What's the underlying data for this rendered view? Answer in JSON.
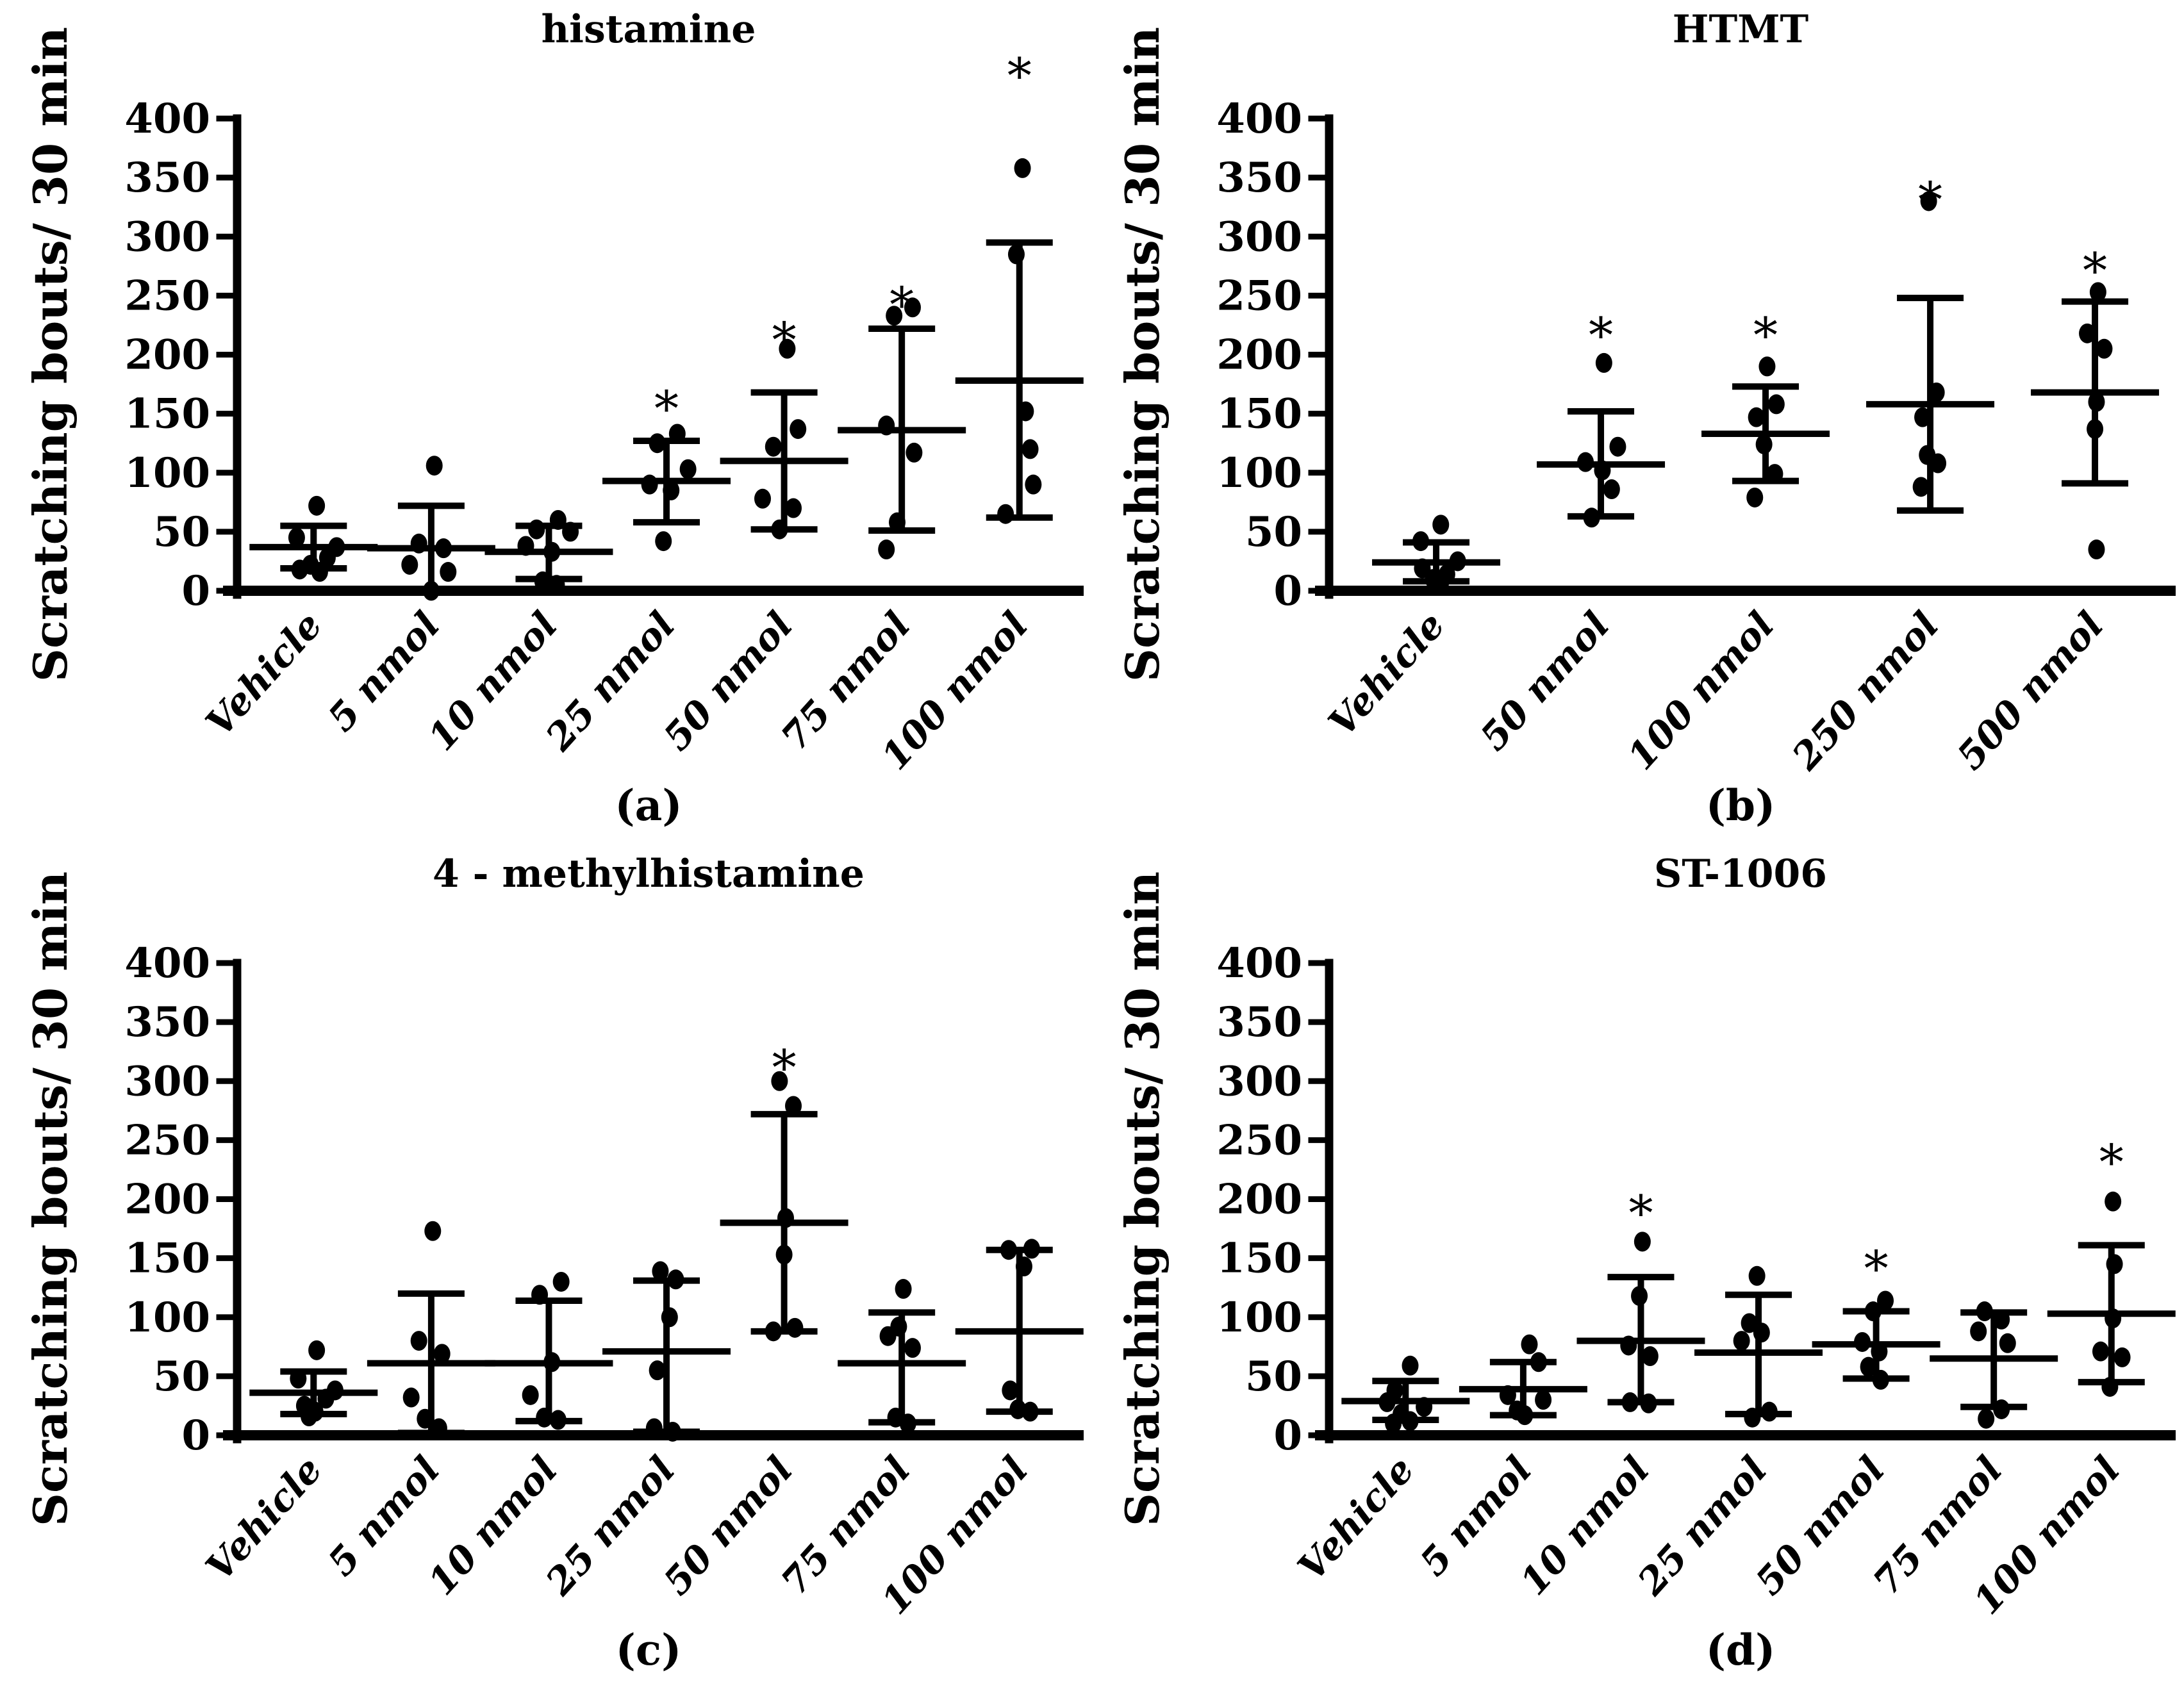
{
  "figure": {
    "background_color": "#ffffff",
    "foreground_color": "#000000",
    "ylabel": "Scratching bouts/ 30 min",
    "ylim": [
      0,
      400
    ],
    "yticks": [
      0,
      50,
      100,
      150,
      200,
      250,
      300,
      350,
      400
    ],
    "significance_marker": "*",
    "marker_style": "filled-black-circle",
    "error_bar_style": "mean with SD whiskers",
    "grid": "off",
    "legend": "none"
  },
  "chart_data": [
    {
      "type": "scatter",
      "panel_letter": "(a)",
      "title": "histamine",
      "xlabel": "",
      "ylabel": "Scratching bouts/ 30 min",
      "ylim": [
        0,
        400
      ],
      "categories": [
        "Vehicle",
        "5 nmol",
        "10 nmol",
        "25 nmol",
        "50 nmol",
        "75 nmol",
        "100 nmol"
      ],
      "groups": [
        {
          "label": "Vehicle",
          "points": [
            [
              72,
              0.1
            ],
            [
              45,
              -0.55
            ],
            [
              37,
              0.75
            ],
            [
              28,
              0.45
            ],
            [
              22,
              -0.1
            ],
            [
              18,
              -0.45
            ],
            [
              16,
              0.2
            ]
          ],
          "mean": 37,
          "sd_low": 19,
          "sd_high": 55,
          "significant": false,
          "star_y": null
        },
        {
          "label": "5 nmol",
          "points": [
            [
              106,
              0.1
            ],
            [
              40,
              -0.4
            ],
            [
              36,
              0.4
            ],
            [
              22,
              -0.7
            ],
            [
              16,
              0.55
            ],
            [
              0,
              0.0
            ]
          ],
          "mean": 36,
          "sd_low": 0,
          "sd_high": 72,
          "significant": false,
          "star_y": null
        },
        {
          "label": "10 nmol",
          "points": [
            [
              60,
              0.3
            ],
            [
              52,
              -0.4
            ],
            [
              50,
              0.7
            ],
            [
              38,
              -0.75
            ],
            [
              33,
              0.1
            ],
            [
              8,
              -0.2
            ],
            [
              5,
              0.25
            ]
          ],
          "mean": 33,
          "sd_low": 10,
          "sd_high": 55,
          "significant": false,
          "star_y": null
        },
        {
          "label": "25 nmol",
          "points": [
            [
              133,
              0.35
            ],
            [
              125,
              -0.3
            ],
            [
              103,
              0.7
            ],
            [
              90,
              -0.55
            ],
            [
              85,
              0.15
            ],
            [
              42,
              -0.1
            ]
          ],
          "mean": 93,
          "sd_low": 58,
          "sd_high": 127,
          "significant": true,
          "star_y": 168
        },
        {
          "label": "50 nmol",
          "points": [
            [
              205,
              0.1
            ],
            [
              137,
              0.45
            ],
            [
              122,
              -0.35
            ],
            [
              78,
              -0.7
            ],
            [
              70,
              0.3
            ],
            [
              52,
              -0.15
            ]
          ],
          "mean": 110,
          "sd_low": 52,
          "sd_high": 168,
          "significant": true,
          "star_y": 226
        },
        {
          "label": "75 nmol",
          "points": [
            [
              240,
              0.35
            ],
            [
              233,
              -0.25
            ],
            [
              140,
              -0.5
            ],
            [
              117,
              0.4
            ],
            [
              58,
              -0.15
            ],
            [
              35,
              -0.5
            ]
          ],
          "mean": 136,
          "sd_low": 51,
          "sd_high": 222,
          "significant": true,
          "star_y": 256
        },
        {
          "label": "100 nmol",
          "points": [
            [
              358,
              0.1
            ],
            [
              285,
              -0.1
            ],
            [
              152,
              0.2
            ],
            [
              120,
              0.35
            ],
            [
              90,
              0.45
            ],
            [
              65,
              -0.45
            ]
          ],
          "mean": 178,
          "sd_low": 62,
          "sd_high": 295,
          "significant": true,
          "star_y": 450
        }
      ]
    },
    {
      "type": "scatter",
      "panel_letter": "(b)",
      "title": "HTMT",
      "xlabel": "",
      "ylabel": "Scratching bouts/ 30 min",
      "ylim": [
        0,
        400
      ],
      "categories": [
        "Vehicle",
        "50 nmol",
        "100 nmol",
        "250 nmol",
        "500 nmol"
      ],
      "groups": [
        {
          "label": "Vehicle",
          "points": [
            [
              56,
              0.15
            ],
            [
              42,
              -0.5
            ],
            [
              25,
              0.7
            ],
            [
              19,
              -0.45
            ],
            [
              14,
              0.35
            ],
            [
              10,
              -0.1
            ],
            [
              7,
              0.15
            ]
          ],
          "mean": 24,
          "sd_low": 8,
          "sd_high": 41,
          "significant": false,
          "star_y": null
        },
        {
          "label": "50 nmol",
          "points": [
            [
              193,
              0.1
            ],
            [
              122,
              0.55
            ],
            [
              109,
              -0.5
            ],
            [
              102,
              0.05
            ],
            [
              86,
              0.35
            ],
            [
              62,
              -0.3
            ]
          ],
          "mean": 107,
          "sd_low": 63,
          "sd_high": 152,
          "significant": true,
          "star_y": 230
        },
        {
          "label": "100 nmol",
          "points": [
            [
              190,
              0.05
            ],
            [
              158,
              0.35
            ],
            [
              147,
              -0.3
            ],
            [
              124,
              -0.05
            ],
            [
              99,
              0.3
            ],
            [
              79,
              -0.35
            ]
          ],
          "mean": 133,
          "sd_low": 93,
          "sd_high": 173,
          "significant": true,
          "star_y": 230
        },
        {
          "label": "250 nmol",
          "points": [
            [
              330,
              -0.05
            ],
            [
              168,
              0.2
            ],
            [
              147,
              -0.25
            ],
            [
              115,
              -0.1
            ],
            [
              108,
              0.25
            ],
            [
              88,
              -0.3
            ]
          ],
          "mean": 158,
          "sd_low": 68,
          "sd_high": 248,
          "significant": true,
          "star_y": 345
        },
        {
          "label": "500 nmol",
          "points": [
            [
              253,
              0.1
            ],
            [
              218,
              -0.25
            ],
            [
              205,
              0.3
            ],
            [
              160,
              0.05
            ],
            [
              137,
              0.0
            ],
            [
              35,
              0.05
            ]
          ],
          "mean": 168,
          "sd_low": 91,
          "sd_high": 245,
          "significant": true,
          "star_y": 285
        }
      ]
    },
    {
      "type": "scatter",
      "panel_letter": "(c)",
      "title": "4 - methylhistamine",
      "xlabel": "",
      "ylabel": "Scratching bouts/ 30 min",
      "ylim": [
        0,
        400
      ],
      "categories": [
        "Vehicle",
        "5 nmol",
        "10 nmol",
        "25 nmol",
        "50 nmol",
        "75 nmol",
        "100 nmol"
      ],
      "groups": [
        {
          "label": "Vehicle",
          "points": [
            [
              72,
              0.1
            ],
            [
              48,
              -0.5
            ],
            [
              38,
              0.7
            ],
            [
              31,
              0.4
            ],
            [
              25,
              -0.3
            ],
            [
              20,
              0.05
            ],
            [
              16,
              -0.15
            ]
          ],
          "mean": 36,
          "sd_low": 18,
          "sd_high": 54,
          "significant": false,
          "star_y": null
        },
        {
          "label": "5 nmol",
          "points": [
            [
              173,
              0.05
            ],
            [
              80,
              -0.4
            ],
            [
              69,
              0.35
            ],
            [
              32,
              -0.65
            ],
            [
              14,
              -0.2
            ],
            [
              6,
              0.25
            ]
          ],
          "mean": 61,
          "sd_low": 2,
          "sd_high": 120,
          "significant": false,
          "star_y": null
        },
        {
          "label": "10 nmol",
          "points": [
            [
              130,
              0.4
            ],
            [
              119,
              -0.3
            ],
            [
              62,
              0.1
            ],
            [
              34,
              -0.6
            ],
            [
              15,
              -0.15
            ],
            [
              13,
              0.3
            ]
          ],
          "mean": 61,
          "sd_low": 12,
          "sd_high": 114,
          "significant": false,
          "star_y": null
        },
        {
          "label": "25 nmol",
          "points": [
            [
              139,
              -0.2
            ],
            [
              132,
              0.3
            ],
            [
              100,
              0.1
            ],
            [
              55,
              -0.3
            ],
            [
              6,
              -0.4
            ],
            [
              3,
              0.2
            ]
          ],
          "mean": 71,
          "sd_low": 3,
          "sd_high": 131,
          "significant": false,
          "star_y": null
        },
        {
          "label": "50 nmol",
          "points": [
            [
              300,
              -0.15
            ],
            [
              279,
              0.3
            ],
            [
              184,
              0.05
            ],
            [
              153,
              0.0
            ],
            [
              91,
              0.35
            ],
            [
              88,
              -0.35
            ]
          ],
          "mean": 180,
          "sd_low": 88,
          "sd_high": 272,
          "significant": true,
          "star_y": 325
        },
        {
          "label": "75 nmol",
          "points": [
            [
              124,
              0.05
            ],
            [
              92,
              -0.1
            ],
            [
              84,
              -0.45
            ],
            [
              74,
              0.35
            ],
            [
              15,
              -0.2
            ],
            [
              10,
              0.2
            ]
          ],
          "mean": 61,
          "sd_low": 11,
          "sd_high": 104,
          "significant": false,
          "star_y": null
        },
        {
          "label": "100 nmol",
          "points": [
            [
              158,
              0.4
            ],
            [
              157,
              -0.35
            ],
            [
              143,
              0.15
            ],
            [
              38,
              -0.3
            ],
            [
              22,
              -0.05
            ],
            [
              20,
              0.35
            ]
          ],
          "mean": 88,
          "sd_low": 20,
          "sd_high": 157,
          "significant": false,
          "star_y": null
        }
      ]
    },
    {
      "type": "scatter",
      "panel_letter": "(d)",
      "title": "ST-1006",
      "xlabel": "",
      "ylabel": "Scratching bouts/ 30 min",
      "ylim": [
        0,
        400
      ],
      "categories": [
        "Vehicle",
        "5 nmol",
        "10 nmol",
        "25 nmol",
        "50 nmol",
        "75 nmol",
        "100 nmol"
      ],
      "groups": [
        {
          "label": "Vehicle",
          "points": [
            [
              59,
              0.15
            ],
            [
              38,
              -0.35
            ],
            [
              28,
              -0.6
            ],
            [
              24,
              0.6
            ],
            [
              18,
              -0.15
            ],
            [
              12,
              0.15
            ],
            [
              10,
              -0.4
            ]
          ],
          "mean": 29,
          "sd_low": 13,
          "sd_high": 46,
          "significant": false,
          "star_y": null
        },
        {
          "label": "5 nmol",
          "points": [
            [
              77,
              0.2
            ],
            [
              62,
              0.5
            ],
            [
              34,
              -0.5
            ],
            [
              30,
              0.65
            ],
            [
              21,
              -0.2
            ],
            [
              17,
              0.05
            ]
          ],
          "mean": 39,
          "sd_low": 17,
          "sd_high": 62,
          "significant": false,
          "star_y": null
        },
        {
          "label": "10 nmol",
          "points": [
            [
              164,
              0.05
            ],
            [
              118,
              -0.05
            ],
            [
              76,
              -0.4
            ],
            [
              67,
              0.3
            ],
            [
              28,
              -0.35
            ],
            [
              27,
              0.25
            ]
          ],
          "mean": 80,
          "sd_low": 28,
          "sd_high": 134,
          "significant": true,
          "star_y": 202
        },
        {
          "label": "25 nmol",
          "points": [
            [
              135,
              -0.05
            ],
            [
              95,
              -0.3
            ],
            [
              87,
              0.1
            ],
            [
              80,
              -0.55
            ],
            [
              20,
              0.35
            ],
            [
              15,
              -0.2
            ]
          ],
          "mean": 70,
          "sd_low": 18,
          "sd_high": 119,
          "significant": false,
          "star_y": null
        },
        {
          "label": "50 nmol",
          "points": [
            [
              114,
              0.3
            ],
            [
              105,
              -0.1
            ],
            [
              79,
              -0.45
            ],
            [
              71,
              0.1
            ],
            [
              58,
              -0.25
            ],
            [
              47,
              0.15
            ]
          ],
          "mean": 77,
          "sd_low": 48,
          "sd_high": 105,
          "significant": true,
          "star_y": 155
        },
        {
          "label": "75 nmol",
          "points": [
            [
              105,
              -0.3
            ],
            [
              98,
              0.25
            ],
            [
              88,
              -0.5
            ],
            [
              78,
              0.45
            ],
            [
              22,
              0.25
            ],
            [
              14,
              -0.25
            ]
          ],
          "mean": 65,
          "sd_low": 24,
          "sd_high": 104,
          "significant": false,
          "star_y": null
        },
        {
          "label": "100 nmol",
          "points": [
            [
              198,
              0.05
            ],
            [
              145,
              0.1
            ],
            [
              99,
              0.05
            ],
            [
              71,
              -0.35
            ],
            [
              66,
              0.35
            ],
            [
              41,
              -0.05
            ]
          ],
          "mean": 103,
          "sd_low": 45,
          "sd_high": 161,
          "significant": true,
          "star_y": 245
        }
      ]
    }
  ]
}
